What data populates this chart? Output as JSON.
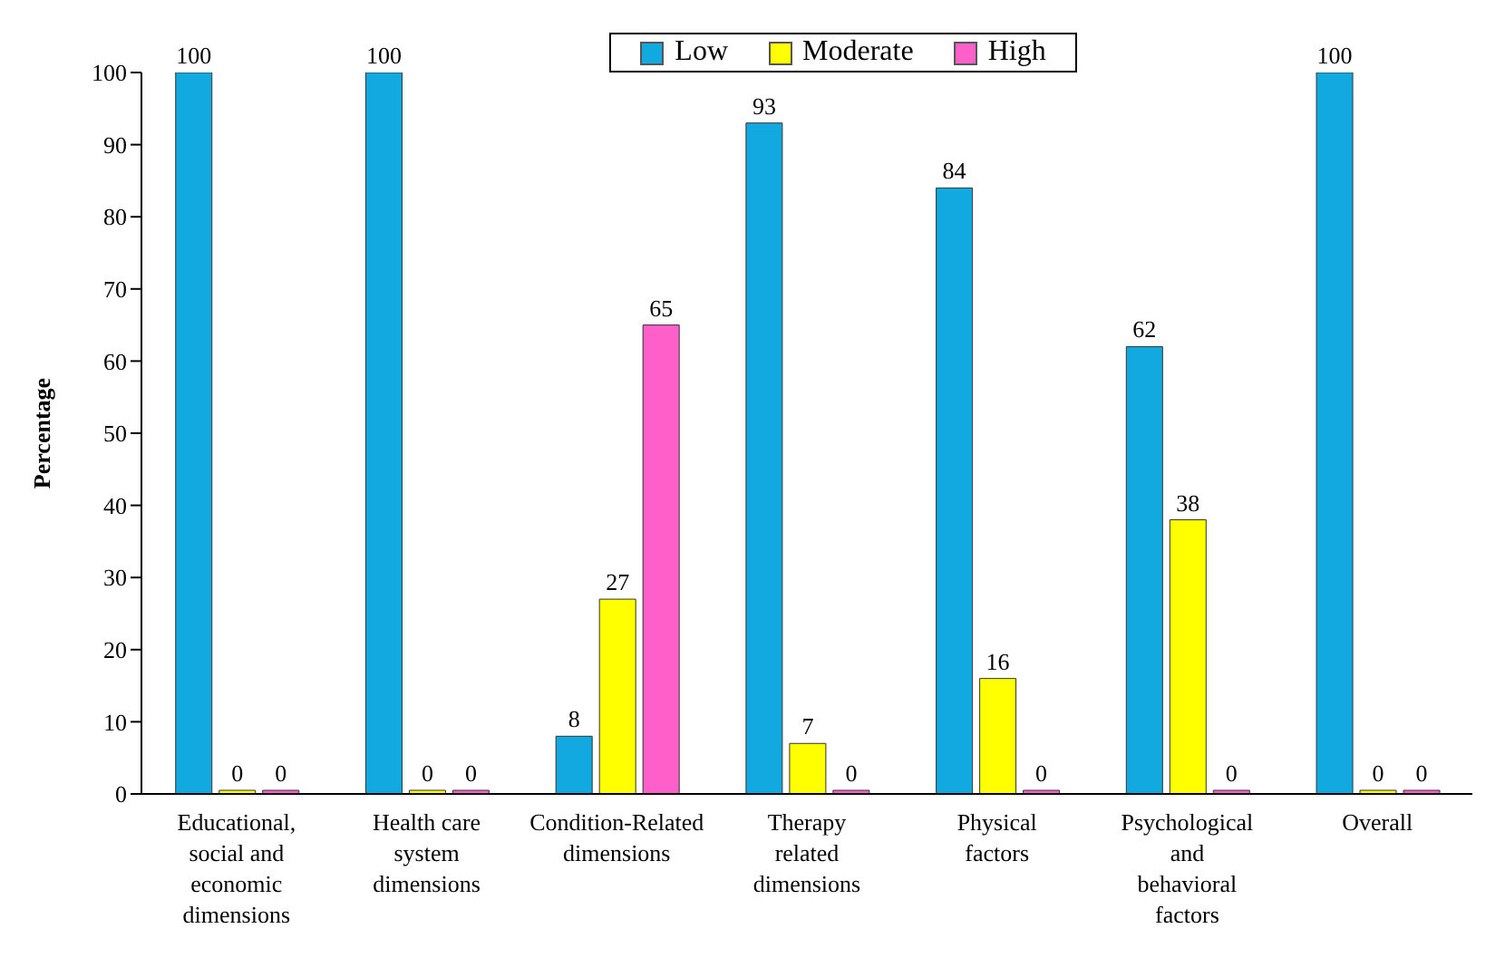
{
  "chart_data": {
    "type": "bar",
    "ylabel": "Percentage",
    "categories": [
      "Educational, social and economic dimensions",
      "Health care system dimensions",
      "Condition-Related dimensions",
      "Therapy related dimensions",
      "Physical factors",
      "Psychological and behavioral factors",
      "Overall"
    ],
    "series": [
      {
        "name": "Low",
        "color": "#12a9e0",
        "values": [
          100,
          100,
          8,
          93,
          84,
          62,
          100
        ]
      },
      {
        "name": "Moderate",
        "color": "#ffff00",
        "values": [
          0,
          0,
          27,
          7,
          16,
          38,
          0
        ]
      },
      {
        "name": "High",
        "color": "#ff5fc8",
        "values": [
          0,
          0,
          65,
          0,
          0,
          0,
          0
        ]
      }
    ],
    "ylim": [
      0,
      100
    ],
    "yticks": [
      0,
      10,
      20,
      30,
      40,
      50,
      60,
      70,
      80,
      90,
      100
    ],
    "data_labels": true,
    "legend": "top",
    "grid": false
  }
}
